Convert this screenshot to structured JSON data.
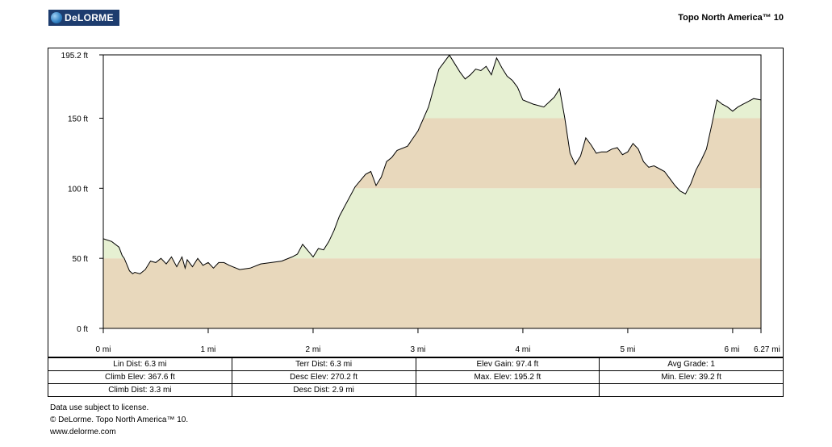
{
  "header": {
    "logo_text": "DeLORME",
    "product": "Topo North America™ 10"
  },
  "chart_data": {
    "type": "area",
    "xlabel": "",
    "ylabel": "",
    "xlim": [
      0,
      6.27
    ],
    "ylim": [
      0,
      195.2
    ],
    "x_tick_values": [
      0,
      1,
      2,
      3,
      4,
      5,
      6,
      6.27
    ],
    "x_tick_labels": [
      "0 mi",
      "1 mi",
      "2 mi",
      "3 mi",
      "4 mi",
      "5 mi",
      "6 mi",
      "6.27 mi"
    ],
    "y_tick_values": [
      0,
      50,
      100,
      150,
      195.2
    ],
    "y_tick_labels": [
      "0 ft",
      "50 ft",
      "100 ft",
      "150 ft",
      "195.2 ft"
    ],
    "bands": [
      {
        "from": 0,
        "to": 50,
        "color": "#e8d8bc"
      },
      {
        "from": 50,
        "to": 100,
        "color": "#e6f0d2"
      },
      {
        "from": 100,
        "to": 150,
        "color": "#e8d8bc"
      },
      {
        "from": 150,
        "to": 200,
        "color": "#e6f0d2"
      }
    ],
    "series": [
      {
        "x": [
          0,
          0.08,
          0.15,
          0.18,
          0.2,
          0.25,
          0.28,
          0.3,
          0.35,
          0.4,
          0.45,
          0.5,
          0.55,
          0.6,
          0.65,
          0.7,
          0.75,
          0.78,
          0.8,
          0.85,
          0.9,
          0.95,
          1.0,
          1.05,
          1.1,
          1.15,
          1.2,
          1.3,
          1.4,
          1.5,
          1.6,
          1.7,
          1.8,
          1.85,
          1.9,
          2.0,
          2.05,
          2.1,
          2.15,
          2.2,
          2.25,
          2.3,
          2.4,
          2.5,
          2.55,
          2.6,
          2.65,
          2.7,
          2.75,
          2.8,
          2.9,
          3.0,
          3.1,
          3.2,
          3.3,
          3.4,
          3.45,
          3.5,
          3.55,
          3.6,
          3.65,
          3.7,
          3.75,
          3.8,
          3.85,
          3.9,
          3.95,
          4.0,
          4.1,
          4.2,
          4.3,
          4.35,
          4.4,
          4.45,
          4.5,
          4.55,
          4.6,
          4.65,
          4.7,
          4.75,
          4.8,
          4.85,
          4.9,
          4.95,
          5.0,
          5.05,
          5.1,
          5.15,
          5.2,
          5.25,
          5.3,
          5.35,
          5.4,
          5.45,
          5.5,
          5.55,
          5.6,
          5.65,
          5.7,
          5.75,
          5.8,
          5.85,
          5.9,
          5.95,
          6.0,
          6.05,
          6.1,
          6.15,
          6.2,
          6.27
        ],
        "y": [
          64,
          62,
          58,
          52,
          50,
          41,
          39,
          40,
          39,
          42,
          48,
          47,
          50,
          46,
          51,
          44,
          51,
          43,
          49,
          44,
          50,
          45,
          47,
          43,
          47,
          47,
          45,
          42,
          43,
          46,
          47,
          48,
          51,
          53,
          60,
          51,
          57,
          56,
          62,
          70,
          80,
          87,
          101,
          110,
          112,
          102,
          108,
          119,
          122,
          127,
          130,
          141,
          158,
          185,
          195,
          183,
          178,
          181,
          185,
          184,
          187,
          181,
          193,
          186,
          180,
          177,
          172,
          163,
          160,
          158,
          165,
          171,
          150,
          125,
          117,
          123,
          136,
          131,
          125,
          126,
          126,
          128,
          129,
          124,
          126,
          132,
          128,
          119,
          115,
          116,
          114,
          112,
          107,
          102,
          98,
          96,
          103,
          113,
          120,
          128,
          145,
          163,
          160,
          158,
          155,
          158,
          160,
          162,
          164,
          163
        ]
      }
    ]
  },
  "stats": [
    [
      "Lin Dist:  6.3 mi",
      "Terr Dist:  6.3 mi",
      "Elev Gain:  97.4 ft",
      "Avg Grade:  1"
    ],
    [
      "Climb Elev:  367.6 ft",
      "Desc Elev:  270.2 ft",
      "Max. Elev:  195.2 ft",
      "Min. Elev:  39.2 ft"
    ],
    [
      "Climb Dist:  3.3 mi",
      "Desc Dist:  2.9 mi",
      "",
      ""
    ]
  ],
  "footer": {
    "line1": "Data use subject to license.",
    "line2": "© DeLorme. Topo North America™ 10.",
    "line3": "www.delorme.com"
  }
}
